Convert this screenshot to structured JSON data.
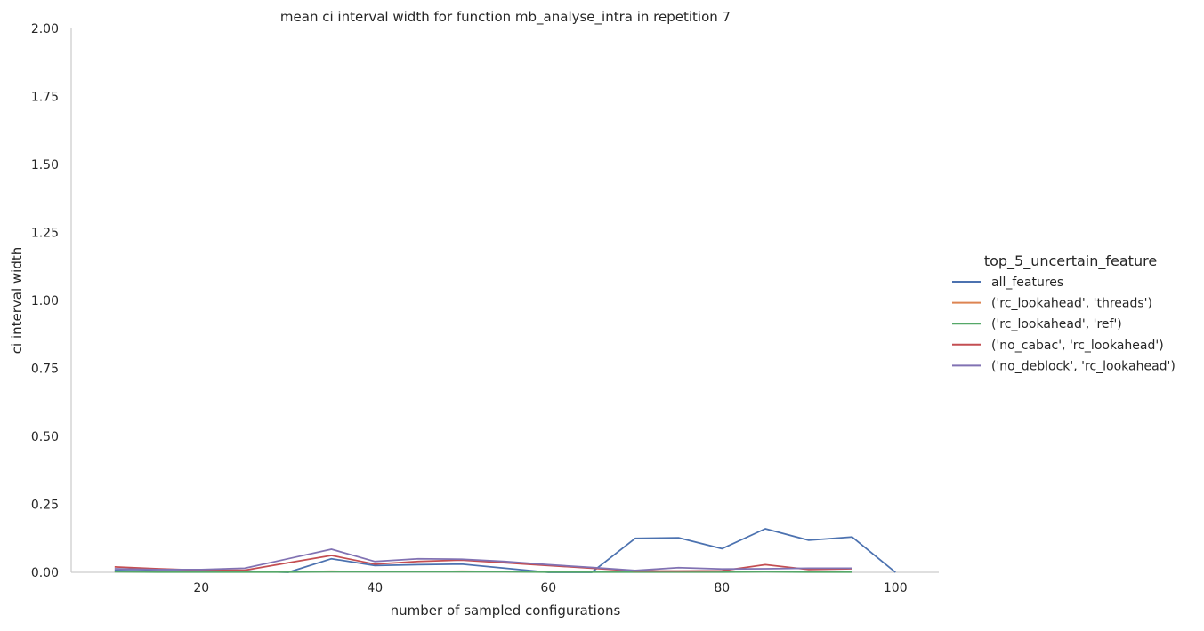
{
  "chart_data": {
    "type": "line",
    "title": "mean ci interval width for function mb_analyse_intra in repetition 7",
    "xlabel": "number of sampled configurations",
    "ylabel": "ci interval width",
    "xlim": [
      5,
      105
    ],
    "ylim": [
      0,
      2.0
    ],
    "x_ticks": [
      20,
      40,
      60,
      80,
      100
    ],
    "y_ticks": [
      0.0,
      0.25,
      0.5,
      0.75,
      1.0,
      1.25,
      1.5,
      1.75,
      2.0
    ],
    "grid": false,
    "legend_title": "top_5_uncertain_feature",
    "legend_position": "right",
    "series": [
      {
        "name": "all_features",
        "color": "#4c72b0",
        "x": [
          10,
          15,
          20,
          25,
          30,
          35,
          40,
          45,
          50,
          55,
          60,
          65,
          70,
          75,
          80,
          85,
          90,
          95,
          100
        ],
        "y": [
          0.007,
          0.005,
          0.005,
          0.005,
          0.0,
          0.05,
          0.025,
          0.028,
          0.03,
          0.015,
          0.0,
          0.0,
          0.125,
          0.127,
          0.087,
          0.16,
          0.118,
          0.13,
          0.0
        ]
      },
      {
        "name": "('rc_lookahead', 'threads')",
        "color": "#dd8452",
        "x": [
          10,
          15,
          20,
          25,
          30,
          35,
          40,
          45,
          50,
          55,
          60,
          65,
          70,
          75,
          80,
          85,
          90,
          95
        ],
        "y": [
          0.003,
          0.002,
          0.002,
          0.002,
          0.002,
          0.004,
          0.003,
          0.003,
          0.004,
          0.003,
          0.002,
          0.002,
          0.002,
          0.002,
          0.002,
          0.003,
          0.002,
          0.002
        ]
      },
      {
        "name": "('rc_lookahead', 'ref')",
        "color": "#55a868",
        "x": [
          10,
          15,
          20,
          25,
          30,
          35,
          40,
          45,
          50,
          55,
          60,
          65,
          70,
          75,
          80,
          85,
          90,
          95
        ],
        "y": [
          0.002,
          0.001,
          0.001,
          0.001,
          0.001,
          0.002,
          0.002,
          0.002,
          0.002,
          0.002,
          0.001,
          0.001,
          0.001,
          0.001,
          0.001,
          0.002,
          0.001,
          0.001
        ]
      },
      {
        "name": "('no_cabac', 'rc_lookahead')",
        "color": "#c44e52",
        "x": [
          10,
          15,
          20,
          25,
          30,
          35,
          40,
          45,
          50,
          55,
          60,
          65,
          70,
          75,
          80,
          85,
          90,
          95
        ],
        "y": [
          0.02,
          0.013,
          0.008,
          0.008,
          0.035,
          0.062,
          0.03,
          0.04,
          0.045,
          0.035,
          0.025,
          0.015,
          0.005,
          0.005,
          0.006,
          0.028,
          0.01,
          0.013
        ]
      },
      {
        "name": "('no_deblock', 'rc_lookahead')",
        "color": "#8172b3",
        "x": [
          10,
          15,
          20,
          25,
          30,
          35,
          40,
          45,
          50,
          55,
          60,
          65,
          70,
          75,
          80,
          85,
          90,
          95
        ],
        "y": [
          0.013,
          0.01,
          0.01,
          0.015,
          0.05,
          0.085,
          0.04,
          0.05,
          0.048,
          0.04,
          0.028,
          0.018,
          0.007,
          0.017,
          0.012,
          0.013,
          0.015,
          0.015
        ]
      }
    ]
  }
}
